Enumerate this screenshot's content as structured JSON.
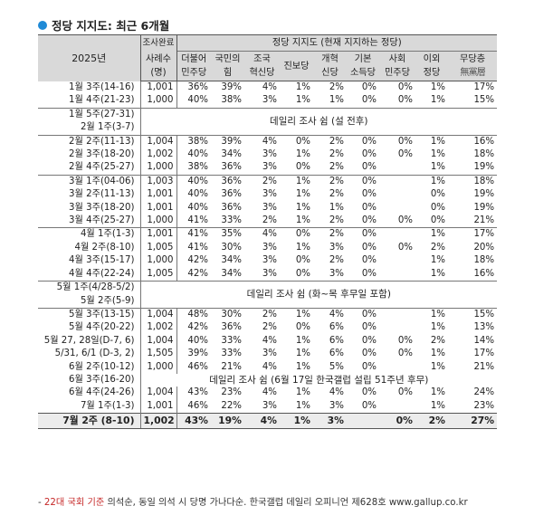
{
  "title": "정당 지지도: 최근 6개월",
  "header": {
    "year": "2025년",
    "survey_complete": "조사완료",
    "sample_line1": "사례수",
    "sample_line2": "(명)",
    "party_support": "정당 지지도 (현재 지지하는 정당)",
    "parties": [
      {
        "l1": "더불어",
        "l2": "민주당"
      },
      {
        "l1": "국민의",
        "l2": "힘"
      },
      {
        "l1": "조국",
        "l2": "혁신당"
      },
      {
        "l1": "진보당",
        "l2": ""
      },
      {
        "l1": "개혁",
        "l2": "신당"
      },
      {
        "l1": "기본",
        "l2": "소득당"
      },
      {
        "l1": "사회",
        "l2": "민주당"
      },
      {
        "l1": "이외",
        "l2": "정당"
      },
      {
        "l1": "무당층",
        "l2": "無黨層"
      }
    ]
  },
  "rows": {
    "r1": {
      "label": "1월 3주(14-16)",
      "n": "1,001",
      "v": [
        "36%",
        "39%",
        "4%",
        "1%",
        "2%",
        "0%",
        "0%",
        "1%",
        "17%"
      ]
    },
    "r2": {
      "label": "1월 4주(21-23)",
      "n": "1,000",
      "v": [
        "40%",
        "38%",
        "3%",
        "1%",
        "1%",
        "0%",
        "0%",
        "1%",
        "15%"
      ]
    },
    "n1a": "1월 5주(27-31)",
    "n1b": "2월 1주(3-7)",
    "n1": "데일리 조사 쉼 (설 전후)",
    "r3": {
      "label": "2월 2주(11-13)",
      "n": "1,004",
      "v": [
        "38%",
        "39%",
        "4%",
        "0%",
        "2%",
        "0%",
        "0%",
        "1%",
        "16%"
      ]
    },
    "r4": {
      "label": "2월 3주(18-20)",
      "n": "1,002",
      "v": [
        "40%",
        "34%",
        "3%",
        "1%",
        "2%",
        "0%",
        "0%",
        "1%",
        "18%"
      ]
    },
    "r5": {
      "label": "2월 4주(25-27)",
      "n": "1,000",
      "v": [
        "38%",
        "36%",
        "3%",
        "0%",
        "2%",
        "0%",
        "",
        "1%",
        "19%"
      ]
    },
    "r6": {
      "label": "3월 1주(04-06)",
      "n": "1,003",
      "v": [
        "40%",
        "36%",
        "2%",
        "1%",
        "2%",
        "0%",
        "",
        "1%",
        "18%"
      ]
    },
    "r7": {
      "label": "3월 2주(11-13)",
      "n": "1,001",
      "v": [
        "40%",
        "36%",
        "3%",
        "1%",
        "2%",
        "0%",
        "",
        "0%",
        "19%"
      ]
    },
    "r8": {
      "label": "3월 3주(18-20)",
      "n": "1,001",
      "v": [
        "40%",
        "36%",
        "3%",
        "1%",
        "1%",
        "0%",
        "",
        "0%",
        "19%"
      ]
    },
    "r9": {
      "label": "3월 4주(25-27)",
      "n": "1,000",
      "v": [
        "41%",
        "33%",
        "2%",
        "1%",
        "2%",
        "0%",
        "0%",
        "0%",
        "21%"
      ]
    },
    "r10": {
      "label": "4월 1주(1-3)",
      "n": "1,001",
      "v": [
        "41%",
        "35%",
        "4%",
        "0%",
        "2%",
        "0%",
        "",
        "1%",
        "17%"
      ]
    },
    "r11": {
      "label": "4월 2주(8-10)",
      "n": "1,005",
      "v": [
        "41%",
        "30%",
        "3%",
        "1%",
        "3%",
        "0%",
        "0%",
        "2%",
        "20%"
      ]
    },
    "r12": {
      "label": "4월 3주(15-17)",
      "n": "1,000",
      "v": [
        "42%",
        "34%",
        "3%",
        "0%",
        "2%",
        "0%",
        "",
        "1%",
        "18%"
      ]
    },
    "r13": {
      "label": "4월 4주(22-24)",
      "n": "1,005",
      "v": [
        "42%",
        "34%",
        "3%",
        "0%",
        "3%",
        "0%",
        "",
        "1%",
        "16%"
      ]
    },
    "n2a": "5월 1주(4/28-5/2)",
    "n2b": "5월 2주(5-9)",
    "n2": "데일리 조사 쉼 (화~목 후무일 포함)",
    "r14": {
      "label": "5월 3주(13-15)",
      "n": "1,004",
      "v": [
        "48%",
        "30%",
        "2%",
        "1%",
        "4%",
        "0%",
        "",
        "1%",
        "15%"
      ]
    },
    "r15": {
      "label": "5월 4주(20-22)",
      "n": "1,002",
      "v": [
        "42%",
        "36%",
        "2%",
        "0%",
        "6%",
        "0%",
        "",
        "1%",
        "13%"
      ]
    },
    "r16": {
      "label": "5월 27, 28일(D-7, 6)",
      "n": "1,004",
      "v": [
        "40%",
        "33%",
        "4%",
        "1%",
        "6%",
        "0%",
        "0%",
        "2%",
        "14%"
      ]
    },
    "r17": {
      "label": "5/31, 6/1 (D-3, 2)",
      "n": "1,505",
      "v": [
        "39%",
        "33%",
        "3%",
        "1%",
        "6%",
        "0%",
        "0%",
        "1%",
        "17%"
      ]
    },
    "r18": {
      "label": "6월 2주(10-12)",
      "n": "1,000",
      "v": [
        "46%",
        "21%",
        "4%",
        "1%",
        "5%",
        "0%",
        "",
        "1%",
        "21%"
      ]
    },
    "n3a": "6월 3주(16-20)",
    "n3": "데일리 조사 쉼 (6월 17일 한국갤럽 설립 51주년 후무)",
    "r19": {
      "label": "6월 4주(24-26)",
      "n": "1,004",
      "v": [
        "43%",
        "23%",
        "4%",
        "1%",
        "4%",
        "0%",
        "0%",
        "1%",
        "24%"
      ]
    },
    "r20": {
      "label": "7월 1주(1-3)",
      "n": "1,001",
      "v": [
        "46%",
        "22%",
        "3%",
        "1%",
        "3%",
        "0%",
        "",
        "1%",
        "23%"
      ]
    },
    "r21": {
      "label": "7월 2주 (8-10)",
      "n": "1,002",
      "v": [
        "43%",
        "19%",
        "4%",
        "1%",
        "3%",
        "",
        "0%",
        "2%",
        "27%"
      ]
    }
  },
  "footer": {
    "red": "22대 국회 기준",
    "rest": "의석순, 동일 의석 시 당명 가나다순. 한국갤럽 데일리 오피니언 제628호 www.gallup.co.kr",
    "dash": "- "
  }
}
